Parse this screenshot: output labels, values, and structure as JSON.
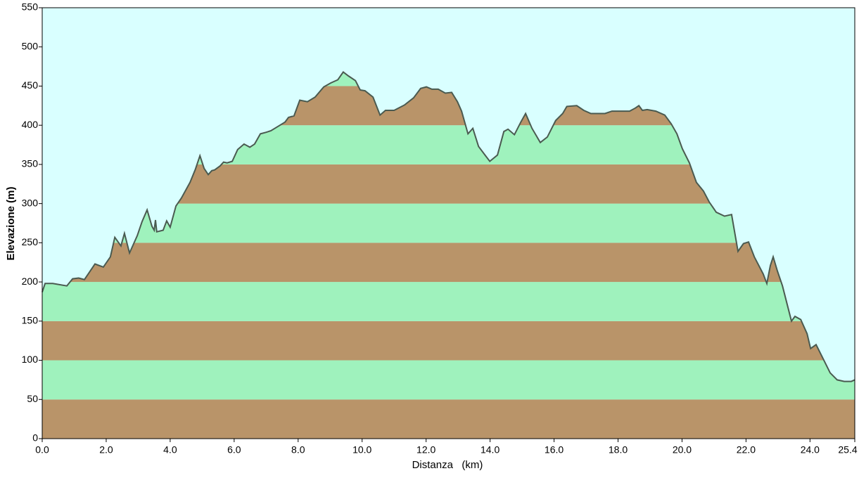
{
  "chart_data": {
    "type": "area",
    "xlabel": "Distanza   (km)",
    "ylabel": "Elevazione (m)",
    "x": [
      0,
      0.09,
      0.33,
      0.77,
      0.95,
      1.14,
      1.32,
      1.65,
      1.91,
      2.13,
      2.27,
      2.46,
      2.57,
      2.73,
      2.97,
      3.12,
      3.28,
      3.43,
      3.5,
      3.54,
      3.58,
      3.78,
      3.89,
      4.0,
      4.18,
      4.35,
      4.62,
      4.79,
      4.93,
      5.06,
      5.19,
      5.3,
      5.39,
      5.56,
      5.67,
      5.78,
      5.94,
      6.11,
      6.31,
      6.49,
      6.64,
      6.82,
      7.0,
      7.15,
      7.39,
      7.59,
      7.7,
      7.87,
      8.05,
      8.29,
      8.53,
      8.8,
      9.02,
      9.24,
      9.41,
      9.57,
      9.79,
      9.94,
      10.09,
      10.34,
      10.56,
      10.73,
      11.0,
      11.33,
      11.61,
      11.83,
      12.01,
      12.18,
      12.38,
      12.6,
      12.8,
      12.98,
      13.11,
      13.31,
      13.46,
      13.64,
      13.86,
      13.99,
      14.23,
      14.43,
      14.56,
      14.76,
      14.96,
      15.11,
      15.31,
      15.57,
      15.79,
      16.05,
      16.27,
      16.4,
      16.71,
      16.93,
      17.15,
      17.59,
      17.81,
      18.36,
      18.54,
      18.65,
      18.76,
      18.91,
      19.18,
      19.46,
      19.66,
      19.84,
      20.01,
      20.23,
      20.45,
      20.67,
      20.85,
      21.07,
      21.33,
      21.55,
      21.75,
      21.92,
      22.08,
      22.26,
      22.54,
      22.65,
      22.76,
      22.85,
      22.98,
      23.14,
      23.42,
      23.53,
      23.71,
      23.91,
      24.02,
      24.19,
      24.41,
      24.63,
      24.85,
      25.07,
      25.29,
      25.4
    ],
    "values": [
      187,
      198,
      198,
      195,
      204,
      205,
      203,
      223,
      219,
      232,
      257,
      246,
      262,
      237,
      259,
      277,
      292,
      271,
      266,
      279,
      264,
      266,
      278,
      270,
      297,
      307,
      327,
      344,
      361,
      345,
      337,
      342,
      343,
      348,
      353,
      352,
      354,
      369,
      376,
      372,
      376,
      389,
      391,
      393,
      399,
      404,
      410,
      412,
      432,
      430,
      436,
      449,
      454,
      458,
      468,
      463,
      457,
      445,
      444,
      436,
      413,
      419,
      419,
      426,
      435,
      447,
      449,
      446,
      446,
      441,
      442,
      430,
      418,
      389,
      396,
      373,
      361,
      354,
      362,
      392,
      395,
      388,
      404,
      415,
      396,
      378,
      385,
      406,
      415,
      424,
      425,
      419,
      415,
      415,
      418,
      418,
      422,
      425,
      419,
      420,
      418,
      413,
      402,
      389,
      370,
      352,
      327,
      316,
      302,
      289,
      284,
      286,
      239,
      249,
      251,
      232,
      210,
      198,
      221,
      232,
      214,
      195,
      150,
      156,
      152,
      134,
      115,
      120,
      102,
      84,
      75,
      73,
      73,
      75
    ],
    "xlim": [
      0,
      25.4
    ],
    "ylim": [
      0,
      550
    ],
    "xticks": [
      {
        "value": 0,
        "label": "0.0"
      },
      {
        "value": 2,
        "label": "2.0"
      },
      {
        "value": 4,
        "label": "4.0"
      },
      {
        "value": 6,
        "label": "6.0"
      },
      {
        "value": 8,
        "label": "8.0"
      },
      {
        "value": 10,
        "label": "10.0"
      },
      {
        "value": 12,
        "label": "12.0"
      },
      {
        "value": 14,
        "label": "14.0"
      },
      {
        "value": 16,
        "label": "16.0"
      },
      {
        "value": 18,
        "label": "18.0"
      },
      {
        "value": 20,
        "label": "20.0"
      },
      {
        "value": 22,
        "label": "22.0"
      },
      {
        "value": 24,
        "label": "24.0"
      },
      25.4
    ],
    "yticks": [
      0,
      50,
      100,
      150,
      200,
      250,
      300,
      350,
      400,
      450,
      500,
      550
    ],
    "background": "#d9ffff",
    "band_colors": [
      "#b99469",
      "#9ff2bd"
    ],
    "line_color": "#4a5a50"
  }
}
